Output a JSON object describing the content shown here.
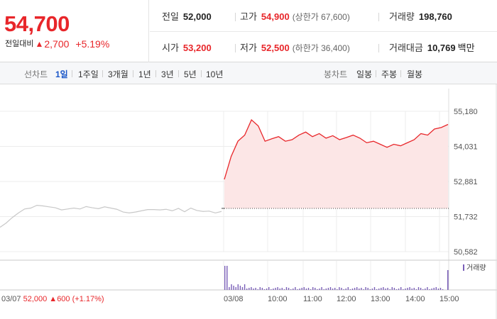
{
  "summary": {
    "current_price": "54,700",
    "change_label": "전일대비",
    "change_arrow": "▲",
    "change_amount": "2,700",
    "change_percent": "+5.19%",
    "stats": {
      "prev_close": {
        "label": "전일",
        "value": "52,000"
      },
      "open": {
        "label": "시가",
        "value": "53,200"
      },
      "high": {
        "label": "고가",
        "value": "54,900",
        "sub": "(상한가 67,600)"
      },
      "low": {
        "label": "저가",
        "value": "52,500",
        "sub": "(하한가 36,400)"
      },
      "volume": {
        "label": "거래량",
        "value": "198,760"
      },
      "amount": {
        "label": "거래대금",
        "value": "10,769",
        "unit": "백만"
      }
    }
  },
  "tabs": {
    "line_label": "선차트",
    "line_items": [
      "1일",
      "1주일",
      "3개월",
      "1년",
      "3년",
      "5년",
      "10년"
    ],
    "active_line": "1일",
    "candle_label": "봉차트",
    "candle_items": [
      "일봉",
      "주봉",
      "월봉"
    ]
  },
  "colors": {
    "up": "#e8262a",
    "accent": "#1a56c8",
    "prev_day_line": "#c8c8c8",
    "area_fill": "#fce6e6",
    "volume": "#7a5fb8"
  },
  "chart_data": {
    "type": "line",
    "title": "",
    "y_ticks": [
      "55,180",
      "54,031",
      "52,881",
      "51,732",
      "50,582"
    ],
    "y_tick_values": [
      55180,
      54031,
      52881,
      51732,
      50582
    ],
    "ylim": [
      50582,
      55180
    ],
    "x_ticks": [
      "03/08",
      "10:00",
      "11:00",
      "12:00",
      "13:00",
      "14:00",
      "15:00"
    ],
    "reference_price": 52000,
    "series": [
      {
        "values": [
          51380,
          51520,
          51700,
          51850,
          51980,
          52010,
          52100,
          52080,
          52050,
          52020,
          51950,
          51980,
          52010,
          51980,
          52060,
          52020,
          51990,
          52050,
          52010,
          51970,
          51880,
          51850,
          51880,
          51920,
          51960,
          51960,
          51950,
          51970,
          51920,
          52000,
          51890,
          52010,
          51930,
          51900,
          51910,
          51850,
          51900
        ]
      },
      {
        "values": [
          52950,
          53700,
          54200,
          54400,
          54900,
          54700,
          54200,
          54280,
          54350,
          54200,
          54250,
          54400,
          54500,
          54350,
          54450,
          54300,
          54380,
          54250,
          54320,
          54400,
          54300,
          54150,
          54200,
          54100,
          54000,
          54100,
          54050,
          54150,
          54250,
          54450,
          54400,
          54600,
          54650,
          54750
        ]
      }
    ],
    "volume_label": "거래량",
    "footer": {
      "prev_date": "03/07",
      "prev_close": "52,000",
      "prev_arrow": "▲",
      "prev_change": "600",
      "prev_pct": "(+1.17%)"
    }
  }
}
